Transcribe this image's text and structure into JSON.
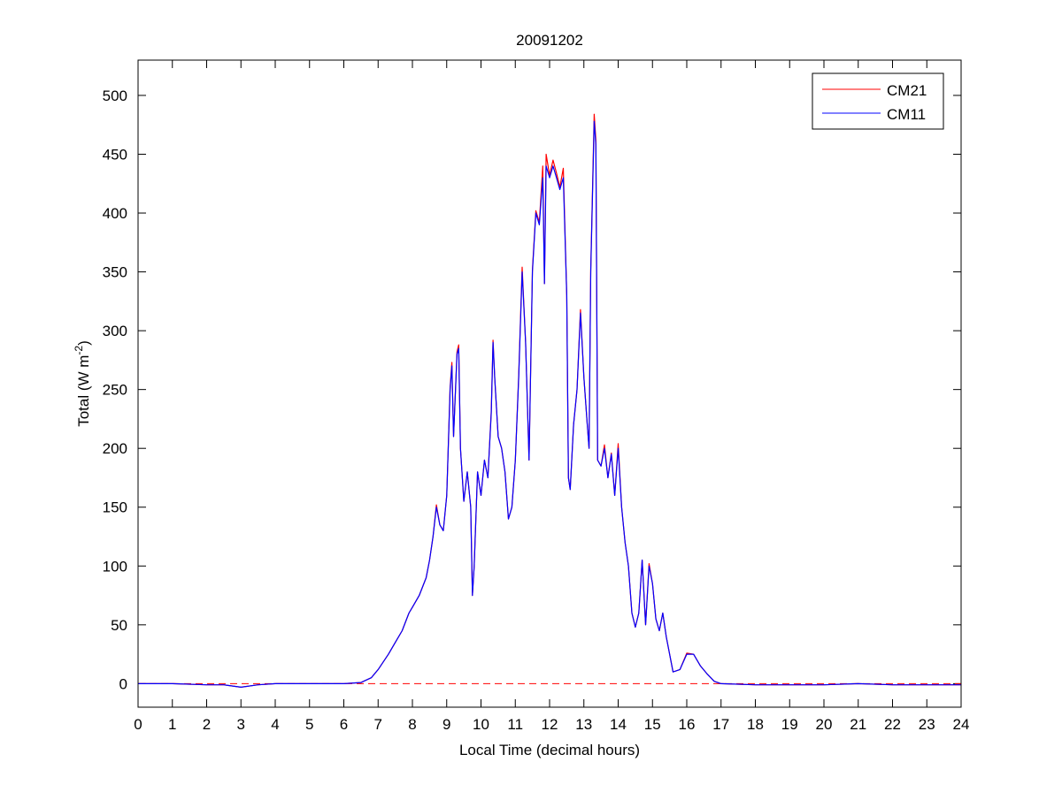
{
  "chart_data": {
    "type": "line",
    "title": "20091202",
    "xlabel": "Local Time (decimal hours)",
    "ylabel": "Total (W m",
    "ylabel_sup": "-2",
    "ylabel_end": ")",
    "xlim": [
      0,
      24
    ],
    "ylim": [
      -20,
      530
    ],
    "xticks": [
      0,
      1,
      2,
      3,
      4,
      5,
      6,
      7,
      8,
      9,
      10,
      11,
      12,
      13,
      14,
      15,
      16,
      17,
      18,
      19,
      20,
      21,
      22,
      23,
      24
    ],
    "yticks": [
      0,
      50,
      100,
      150,
      200,
      250,
      300,
      350,
      400,
      450,
      500
    ],
    "grid": false,
    "legend_placement": "top-right",
    "reference_line": {
      "y": 0,
      "style": "dashed",
      "color": "#ff0000"
    },
    "x": [
      0,
      1,
      2,
      2.5,
      3,
      3.5,
      4,
      5,
      6,
      6.5,
      6.8,
      7,
      7.3,
      7.5,
      7.7,
      7.9,
      8,
      8.2,
      8.4,
      8.5,
      8.6,
      8.7,
      8.8,
      8.9,
      9.0,
      9.1,
      9.15,
      9.2,
      9.3,
      9.35,
      9.4,
      9.5,
      9.6,
      9.7,
      9.75,
      9.8,
      9.9,
      10.0,
      10.1,
      10.2,
      10.3,
      10.35,
      10.4,
      10.5,
      10.6,
      10.7,
      10.8,
      10.9,
      11.0,
      11.1,
      11.2,
      11.3,
      11.4,
      11.5,
      11.6,
      11.7,
      11.8,
      11.85,
      11.9,
      12.0,
      12.1,
      12.2,
      12.3,
      12.4,
      12.5,
      12.55,
      12.6,
      12.7,
      12.8,
      12.9,
      13.0,
      13.1,
      13.15,
      13.2,
      13.3,
      13.35,
      13.4,
      13.5,
      13.6,
      13.7,
      13.8,
      13.9,
      14.0,
      14.1,
      14.2,
      14.3,
      14.4,
      14.5,
      14.6,
      14.7,
      14.8,
      14.9,
      15.0,
      15.1,
      15.2,
      15.3,
      15.4,
      15.6,
      15.8,
      16.0,
      16.2,
      16.4,
      16.6,
      16.8,
      17,
      18,
      19,
      20,
      21,
      22,
      23,
      24
    ],
    "series": [
      {
        "name": "CM21",
        "color": "#ff0000",
        "values": [
          0,
          0,
          -1,
          -1,
          -3,
          -1,
          0,
          0,
          0,
          1,
          5,
          12,
          25,
          35,
          45,
          60,
          65,
          75,
          90,
          105,
          125,
          152,
          135,
          130,
          160,
          252,
          273,
          210,
          282,
          288,
          200,
          155,
          180,
          150,
          75,
          100,
          180,
          160,
          190,
          175,
          232,
          292,
          260,
          210,
          200,
          180,
          140,
          150,
          190,
          262,
          354,
          290,
          190,
          352,
          402,
          392,
          440,
          340,
          450,
          432,
          445,
          434,
          422,
          438,
          330,
          175,
          165,
          220,
          250,
          318,
          260,
          220,
          200,
          352,
          484,
          462,
          190,
          185,
          203,
          175,
          196,
          160,
          204,
          150,
          120,
          100,
          60,
          48,
          60,
          105,
          50,
          102,
          85,
          55,
          45,
          60,
          40,
          10,
          12,
          26,
          25,
          15,
          8,
          2,
          0,
          -1,
          -1,
          -1,
          0,
          -1,
          -1,
          -1
        ]
      },
      {
        "name": "CM11",
        "color": "#0000ff",
        "values": [
          0,
          0,
          -1,
          -1,
          -3,
          -1,
          0,
          0,
          0,
          1,
          5,
          12,
          25,
          35,
          45,
          60,
          65,
          75,
          90,
          105,
          125,
          150,
          135,
          130,
          160,
          250,
          270,
          210,
          280,
          285,
          200,
          155,
          180,
          150,
          75,
          100,
          180,
          160,
          190,
          175,
          230,
          290,
          260,
          210,
          200,
          180,
          140,
          150,
          190,
          260,
          350,
          290,
          190,
          350,
          400,
          390,
          430,
          340,
          440,
          430,
          440,
          430,
          420,
          430,
          330,
          175,
          165,
          220,
          250,
          315,
          260,
          220,
          200,
          350,
          478,
          458,
          190,
          185,
          200,
          175,
          195,
          160,
          200,
          150,
          120,
          100,
          60,
          48,
          60,
          105,
          50,
          100,
          85,
          55,
          45,
          60,
          40,
          10,
          12,
          25,
          25,
          15,
          8,
          2,
          0,
          -1,
          -1,
          -1,
          0,
          -1,
          -1,
          -1
        ]
      }
    ]
  }
}
